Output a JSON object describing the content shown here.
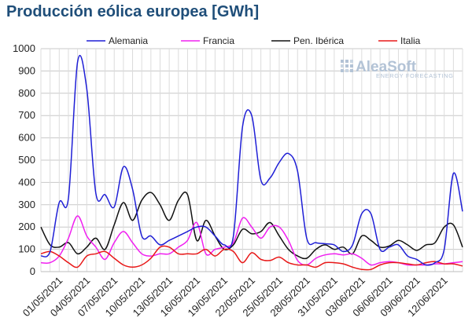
{
  "chart_data": {
    "type": "line",
    "title": "Producción eólica europea [GWh]",
    "xlabel": "",
    "ylabel": "",
    "ylim": [
      0,
      1000
    ],
    "yticks": [
      0,
      100,
      200,
      300,
      400,
      500,
      600,
      700,
      800,
      900,
      1000
    ],
    "xlim": [
      "2021-04-29",
      "2021-06-14"
    ],
    "xtick_labels": [
      "01/05/2021",
      "04/05/2021",
      "07/05/2021",
      "10/05/2021",
      "13/05/2021",
      "16/05/2021",
      "19/05/2021",
      "22/05/2021",
      "25/05/2021",
      "28/05/2021",
      "31/05/2021",
      "03/06/2021",
      "06/06/2021",
      "09/06/2021",
      "12/06/2021"
    ],
    "grid": true,
    "legend_position": "top",
    "watermark": {
      "main": "AleaSoft",
      "sub": "ENERGY FORECASTING"
    },
    "series": [
      {
        "name": "Alemania",
        "color": "#1f1fd6",
        "points": [
          [
            "2021-04-29",
            70
          ],
          [
            "2021-04-30",
            90
          ],
          [
            "2021-05-01",
            310
          ],
          [
            "2021-05-02",
            330
          ],
          [
            "2021-05-03",
            940
          ],
          [
            "2021-05-04",
            820
          ],
          [
            "2021-05-05",
            350
          ],
          [
            "2021-05-06",
            345
          ],
          [
            "2021-05-07",
            290
          ],
          [
            "2021-05-08",
            470
          ],
          [
            "2021-05-09",
            370
          ],
          [
            "2021-05-10",
            160
          ],
          [
            "2021-05-11",
            160
          ],
          [
            "2021-05-12",
            120
          ],
          [
            "2021-05-13",
            140
          ],
          [
            "2021-05-14",
            160
          ],
          [
            "2021-05-15",
            180
          ],
          [
            "2021-05-16",
            200
          ],
          [
            "2021-05-17",
            200
          ],
          [
            "2021-05-18",
            160
          ],
          [
            "2021-05-19",
            120
          ],
          [
            "2021-05-20",
            160
          ],
          [
            "2021-05-21",
            650
          ],
          [
            "2021-05-22",
            700
          ],
          [
            "2021-05-23",
            410
          ],
          [
            "2021-05-24",
            420
          ],
          [
            "2021-05-25",
            490
          ],
          [
            "2021-05-26",
            530
          ],
          [
            "2021-05-27",
            450
          ],
          [
            "2021-05-28",
            150
          ],
          [
            "2021-05-29",
            130
          ],
          [
            "2021-05-30",
            125
          ],
          [
            "2021-05-31",
            120
          ],
          [
            "2021-06-01",
            90
          ],
          [
            "2021-06-02",
            120
          ],
          [
            "2021-06-03",
            260
          ],
          [
            "2021-06-04",
            260
          ],
          [
            "2021-06-05",
            100
          ],
          [
            "2021-06-06",
            110
          ],
          [
            "2021-06-07",
            120
          ],
          [
            "2021-06-08",
            70
          ],
          [
            "2021-06-09",
            55
          ],
          [
            "2021-06-10",
            30
          ],
          [
            "2021-06-11",
            40
          ],
          [
            "2021-06-12",
            100
          ],
          [
            "2021-06-13",
            440
          ],
          [
            "2021-06-14",
            270
          ]
        ]
      },
      {
        "name": "Francia",
        "color": "#f020f0",
        "points": [
          [
            "2021-04-29",
            40
          ],
          [
            "2021-04-30",
            40
          ],
          [
            "2021-05-01",
            70
          ],
          [
            "2021-05-02",
            150
          ],
          [
            "2021-05-03",
            250
          ],
          [
            "2021-05-04",
            160
          ],
          [
            "2021-05-05",
            110
          ],
          [
            "2021-05-06",
            55
          ],
          [
            "2021-05-07",
            130
          ],
          [
            "2021-05-08",
            180
          ],
          [
            "2021-05-09",
            130
          ],
          [
            "2021-05-10",
            80
          ],
          [
            "2021-05-11",
            70
          ],
          [
            "2021-05-12",
            80
          ],
          [
            "2021-05-13",
            80
          ],
          [
            "2021-05-14",
            110
          ],
          [
            "2021-05-15",
            140
          ],
          [
            "2021-05-16",
            220
          ],
          [
            "2021-05-17",
            80
          ],
          [
            "2021-05-18",
            100
          ],
          [
            "2021-05-19",
            110
          ],
          [
            "2021-05-20",
            130
          ],
          [
            "2021-05-21",
            240
          ],
          [
            "2021-05-22",
            200
          ],
          [
            "2021-05-23",
            150
          ],
          [
            "2021-05-24",
            200
          ],
          [
            "2021-05-25",
            200
          ],
          [
            "2021-05-26",
            140
          ],
          [
            "2021-05-27",
            50
          ],
          [
            "2021-05-28",
            30
          ],
          [
            "2021-05-29",
            60
          ],
          [
            "2021-05-30",
            75
          ],
          [
            "2021-05-31",
            80
          ],
          [
            "2021-06-01",
            75
          ],
          [
            "2021-06-02",
            80
          ],
          [
            "2021-06-03",
            60
          ],
          [
            "2021-06-04",
            30
          ],
          [
            "2021-06-05",
            40
          ],
          [
            "2021-06-06",
            45
          ],
          [
            "2021-06-07",
            40
          ],
          [
            "2021-06-08",
            30
          ],
          [
            "2021-06-09",
            30
          ],
          [
            "2021-06-10",
            30
          ],
          [
            "2021-06-11",
            35
          ],
          [
            "2021-06-12",
            35
          ],
          [
            "2021-06-13",
            40
          ],
          [
            "2021-06-14",
            45
          ]
        ]
      },
      {
        "name": "Pen. Ibérica",
        "color": "#111111",
        "points": [
          [
            "2021-04-29",
            200
          ],
          [
            "2021-04-30",
            120
          ],
          [
            "2021-05-01",
            110
          ],
          [
            "2021-05-02",
            130
          ],
          [
            "2021-05-03",
            80
          ],
          [
            "2021-05-04",
            110
          ],
          [
            "2021-05-05",
            150
          ],
          [
            "2021-05-06",
            100
          ],
          [
            "2021-05-07",
            210
          ],
          [
            "2021-05-08",
            310
          ],
          [
            "2021-05-09",
            230
          ],
          [
            "2021-05-10",
            320
          ],
          [
            "2021-05-11",
            355
          ],
          [
            "2021-05-12",
            300
          ],
          [
            "2021-05-13",
            230
          ],
          [
            "2021-05-14",
            320
          ],
          [
            "2021-05-15",
            345
          ],
          [
            "2021-05-16",
            140
          ],
          [
            "2021-05-17",
            230
          ],
          [
            "2021-05-18",
            160
          ],
          [
            "2021-05-19",
            100
          ],
          [
            "2021-05-20",
            120
          ],
          [
            "2021-05-21",
            190
          ],
          [
            "2021-05-22",
            170
          ],
          [
            "2021-05-23",
            180
          ],
          [
            "2021-05-24",
            220
          ],
          [
            "2021-05-25",
            160
          ],
          [
            "2021-05-26",
            100
          ],
          [
            "2021-05-27",
            70
          ],
          [
            "2021-05-28",
            60
          ],
          [
            "2021-05-29",
            100
          ],
          [
            "2021-05-30",
            120
          ],
          [
            "2021-05-31",
            100
          ],
          [
            "2021-06-01",
            110
          ],
          [
            "2021-06-02",
            80
          ],
          [
            "2021-06-03",
            160
          ],
          [
            "2021-06-04",
            140
          ],
          [
            "2021-06-05",
            110
          ],
          [
            "2021-06-06",
            115
          ],
          [
            "2021-06-07",
            140
          ],
          [
            "2021-06-08",
            120
          ],
          [
            "2021-06-09",
            95
          ],
          [
            "2021-06-10",
            120
          ],
          [
            "2021-06-11",
            130
          ],
          [
            "2021-06-12",
            200
          ],
          [
            "2021-06-13",
            210
          ],
          [
            "2021-06-14",
            110
          ]
        ]
      },
      {
        "name": "Italia",
        "color": "#e81818",
        "points": [
          [
            "2021-04-29",
            80
          ],
          [
            "2021-04-30",
            90
          ],
          [
            "2021-05-01",
            70
          ],
          [
            "2021-05-02",
            40
          ],
          [
            "2021-05-03",
            20
          ],
          [
            "2021-05-04",
            70
          ],
          [
            "2021-05-05",
            80
          ],
          [
            "2021-05-06",
            90
          ],
          [
            "2021-05-07",
            60
          ],
          [
            "2021-05-08",
            30
          ],
          [
            "2021-05-09",
            20
          ],
          [
            "2021-05-10",
            30
          ],
          [
            "2021-05-11",
            60
          ],
          [
            "2021-05-12",
            110
          ],
          [
            "2021-05-13",
            110
          ],
          [
            "2021-05-14",
            80
          ],
          [
            "2021-05-15",
            80
          ],
          [
            "2021-05-16",
            80
          ],
          [
            "2021-05-17",
            100
          ],
          [
            "2021-05-18",
            70
          ],
          [
            "2021-05-19",
            100
          ],
          [
            "2021-05-20",
            90
          ],
          [
            "2021-05-21",
            40
          ],
          [
            "2021-05-22",
            85
          ],
          [
            "2021-05-23",
            55
          ],
          [
            "2021-05-24",
            50
          ],
          [
            "2021-05-25",
            65
          ],
          [
            "2021-05-26",
            40
          ],
          [
            "2021-05-27",
            30
          ],
          [
            "2021-05-28",
            30
          ],
          [
            "2021-05-29",
            20
          ],
          [
            "2021-05-30",
            40
          ],
          [
            "2021-05-31",
            40
          ],
          [
            "2021-06-01",
            35
          ],
          [
            "2021-06-02",
            20
          ],
          [
            "2021-06-03",
            10
          ],
          [
            "2021-06-04",
            10
          ],
          [
            "2021-06-05",
            30
          ],
          [
            "2021-06-06",
            40
          ],
          [
            "2021-06-07",
            40
          ],
          [
            "2021-06-08",
            35
          ],
          [
            "2021-06-09",
            30
          ],
          [
            "2021-06-10",
            40
          ],
          [
            "2021-06-11",
            45
          ],
          [
            "2021-06-12",
            35
          ],
          [
            "2021-06-13",
            35
          ],
          [
            "2021-06-14",
            25
          ]
        ]
      }
    ]
  }
}
